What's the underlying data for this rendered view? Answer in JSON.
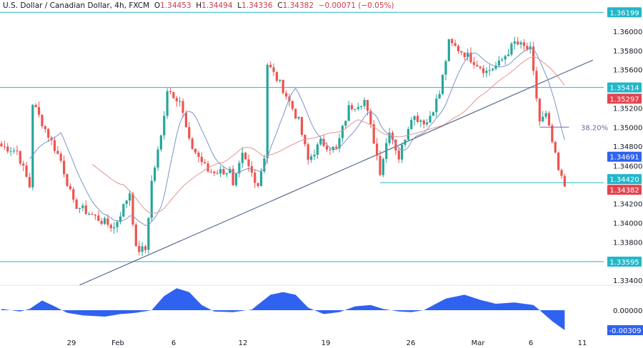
{
  "header": {
    "symbol": "U.S. Dollar / Canadian Dollar, 4h, FXCM",
    "open_label": "O",
    "open": "1.34453",
    "high_label": "H",
    "high": "1.34494",
    "low_label": "L",
    "low": "1.34336",
    "close_label": "C",
    "close": "1.34382",
    "change": "−0.00071 (−0.05%)"
  },
  "chart_data": {
    "type": "candlestick",
    "timeframe": "4h",
    "price_ylim": [
      1.333,
      1.3625
    ],
    "price_ticks": [
      "1.36000",
      "1.35800",
      "1.35600",
      "1.35200",
      "1.35000",
      "1.34800",
      "1.34600",
      "1.34200",
      "1.34000",
      "1.33800",
      "1.33400"
    ],
    "x_ticks": [
      "29",
      "Feb",
      "6",
      "12",
      "19",
      "26",
      "Mar",
      "6",
      "11"
    ],
    "close_path_by_candle_index": [
      [
        0,
        1.348
      ],
      [
        5,
        1.3475
      ],
      [
        9,
        1.3438
      ],
      [
        10,
        1.3525
      ],
      [
        14,
        1.3498
      ],
      [
        19,
        1.3465
      ],
      [
        23,
        1.342
      ],
      [
        32,
        1.3402
      ],
      [
        36,
        1.3395
      ],
      [
        41,
        1.3432
      ],
      [
        43,
        1.3372
      ],
      [
        46,
        1.3372
      ],
      [
        48,
        1.3443
      ],
      [
        51,
        1.349
      ],
      [
        53,
        1.354
      ],
      [
        57,
        1.3528
      ],
      [
        60,
        1.3484
      ],
      [
        66,
        1.3454
      ],
      [
        73,
        1.3454
      ],
      [
        74,
        1.3436
      ],
      [
        77,
        1.347
      ],
      [
        82,
        1.344
      ],
      [
        84,
        1.347
      ],
      [
        85,
        1.3566
      ],
      [
        90,
        1.354
      ],
      [
        95,
        1.3506
      ],
      [
        98,
        1.3465
      ],
      [
        102,
        1.3484
      ],
      [
        107,
        1.3476
      ],
      [
        111,
        1.352
      ],
      [
        116,
        1.3528
      ],
      [
        119,
        1.3486
      ],
      [
        121,
        1.3454
      ],
      [
        124,
        1.3498
      ],
      [
        127,
        1.3468
      ],
      [
        131,
        1.3512
      ],
      [
        136,
        1.3505
      ],
      [
        140,
        1.3535
      ],
      [
        143,
        1.3588
      ],
      [
        148,
        1.3577
      ],
      [
        155,
        1.3558
      ],
      [
        159,
        1.3566
      ],
      [
        164,
        1.3588
      ],
      [
        169,
        1.358
      ],
      [
        172,
        1.3506
      ],
      [
        174,
        1.3512
      ],
      [
        176,
        1.3484
      ],
      [
        178,
        1.3454
      ],
      [
        180,
        1.3438
      ]
    ],
    "moving_averages": [
      {
        "period": 10,
        "color": "#7b93c9"
      },
      {
        "period": 30,
        "color": "#e09494"
      }
    ],
    "horizontal_levels": [
      {
        "price": 1.36199,
        "label": "1.36199",
        "color": "#22b6c9"
      },
      {
        "price": 1.35414,
        "label": "1.35414",
        "color": "#22b6c9"
      },
      {
        "price": 1.3442,
        "label": "1.34420",
        "color": "#22b6c9"
      },
      {
        "price": 1.33595,
        "label": "1.33595",
        "color": "#22b6c9"
      }
    ],
    "price_labels": [
      {
        "price": 1.35297,
        "label": "1.35297",
        "color": "#e2444f"
      },
      {
        "price": 1.34691,
        "label": "1.34691",
        "color": "#2f62f0"
      },
      {
        "price": 1.34382,
        "label": "1.34382",
        "color": "#e2444f"
      }
    ],
    "fib_level": {
      "price": 1.35,
      "label": "38.20%",
      "color": "#7e5ea8"
    },
    "trendline": {
      "from": [
        25,
        1.3335
      ],
      "to": [
        189,
        1.357
      ],
      "color": "#4a5f86"
    },
    "oscillator": {
      "ylim": [
        -0.0035,
        0.004
      ],
      "tick": "0.00000",
      "current_label": "-0.00309",
      "color": "#2f62f0",
      "values_by_candle_index": [
        [
          0,
          0.0002
        ],
        [
          6,
          -0.0002
        ],
        [
          9,
          0.0002
        ],
        [
          13,
          0.0015
        ],
        [
          17,
          0.0006
        ],
        [
          21,
          -0.0004
        ],
        [
          26,
          -0.0008
        ],
        [
          33,
          -0.001
        ],
        [
          38,
          -0.0006
        ],
        [
          43,
          -0.0004
        ],
        [
          48,
          0.0
        ],
        [
          52,
          0.0022
        ],
        [
          56,
          0.0034
        ],
        [
          60,
          0.0028
        ],
        [
          64,
          0.0008
        ],
        [
          68,
          -0.0002
        ],
        [
          74,
          -0.0003
        ],
        [
          80,
          0.0001
        ],
        [
          86,
          0.0024
        ],
        [
          90,
          0.0028
        ],
        [
          94,
          0.0024
        ],
        [
          98,
          0.0004
        ],
        [
          103,
          -0.0006
        ],
        [
          108,
          -0.0003
        ],
        [
          113,
          0.0006
        ],
        [
          118,
          0.0008
        ],
        [
          122,
          0.0002
        ],
        [
          127,
          -0.0002
        ],
        [
          131,
          -0.0003
        ],
        [
          135,
          0.0
        ],
        [
          142,
          0.0018
        ],
        [
          148,
          0.0024
        ],
        [
          153,
          0.0016
        ],
        [
          158,
          0.001
        ],
        [
          164,
          0.0012
        ],
        [
          170,
          0.0008
        ],
        [
          172,
          0.0
        ],
        [
          176,
          -0.0017
        ],
        [
          180,
          -0.00309
        ]
      ]
    }
  }
}
